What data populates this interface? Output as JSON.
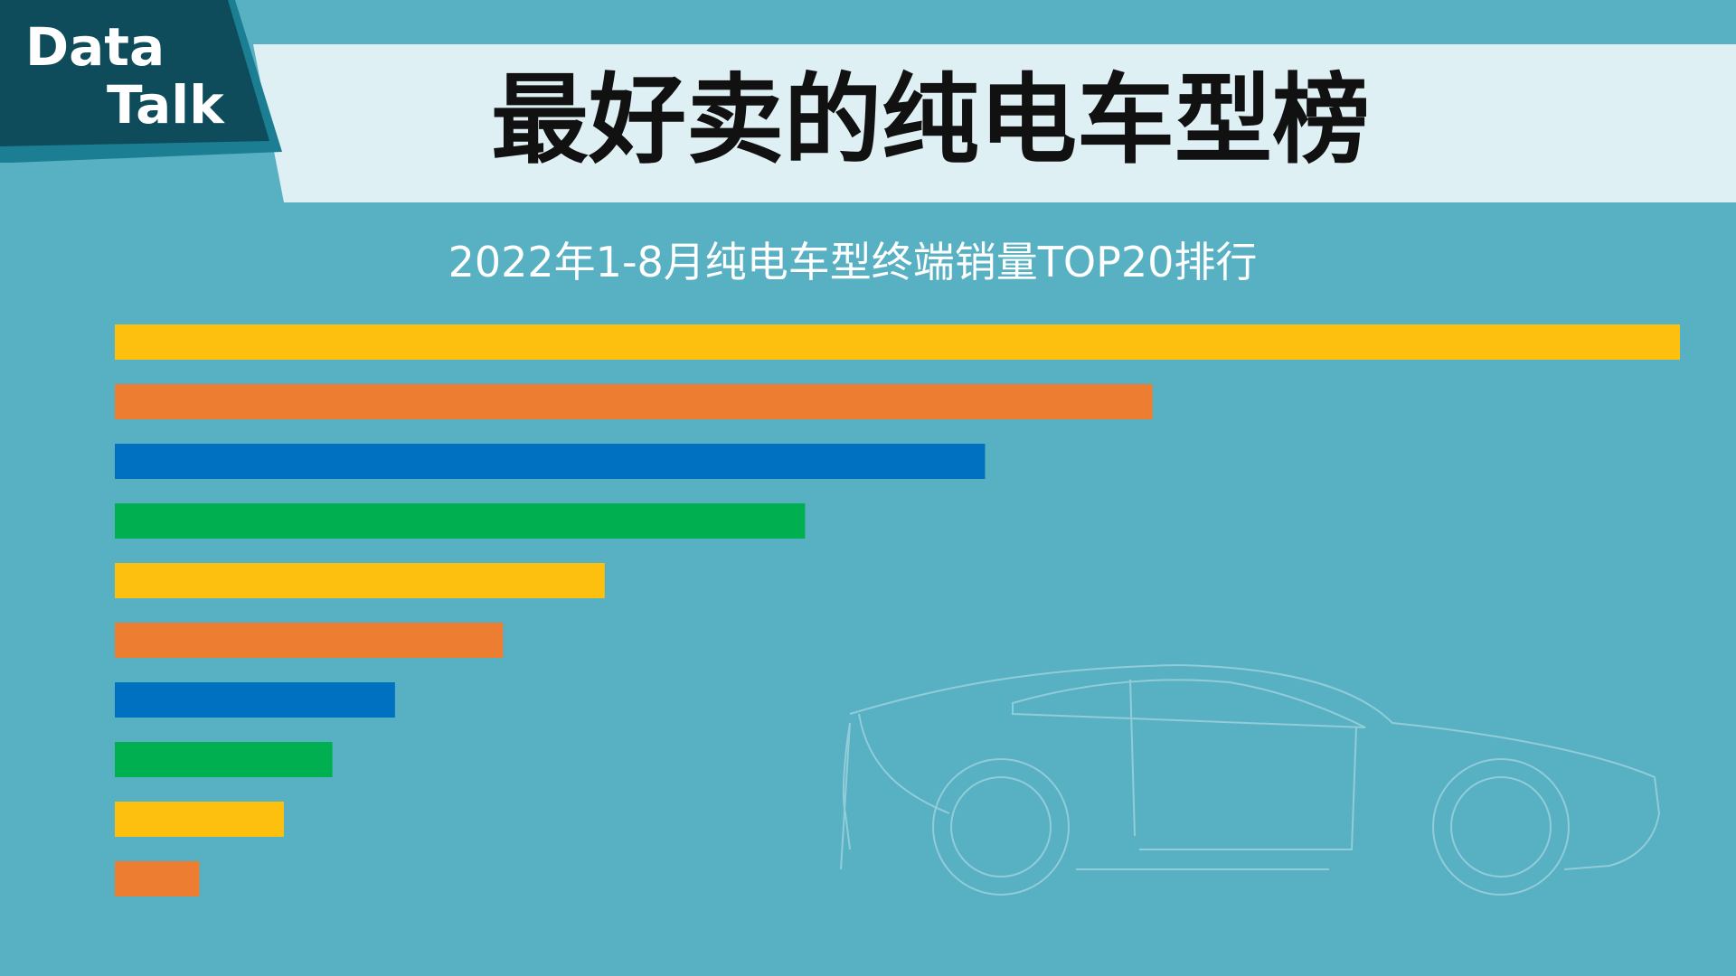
{
  "logo": {
    "line1": "Data",
    "line2": "Talk"
  },
  "chart_data": {
    "type": "bar",
    "orientation": "horizontal",
    "title": "最好卖的纯电车型榜",
    "subtitle": "2022年1-8月纯电车型终端销量TOP20排行",
    "categories": [
      null,
      null,
      null,
      null,
      null,
      null,
      null,
      null,
      null,
      null
    ],
    "values": [
      100,
      66.3,
      55.6,
      44.1,
      31.3,
      24.8,
      17.9,
      13.9,
      10.8,
      5.4
    ],
    "colors": [
      "#fdc00f",
      "#ed7d31",
      "#0070c0",
      "#00b050",
      "#fdc00f",
      "#ed7d31",
      "#0070c0",
      "#00b050",
      "#fdc00f",
      "#ed7d31"
    ]
  }
}
